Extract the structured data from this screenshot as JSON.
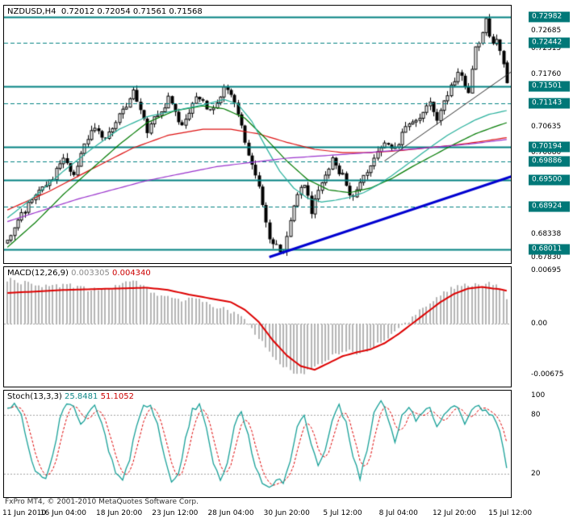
{
  "footer": {
    "copyright": "FxPro MT4, © 2001-2010 MetaQuotes Software Corp."
  },
  "colors": {
    "level_teal": "#008080",
    "badge_bg": "#007878",
    "bull": "#ffffff",
    "bear": "#000000",
    "wick": "#000000",
    "grid_gray": "#a0a0a0",
    "macd_hist": "#b4b4b4",
    "macd_signal": "#dd0000",
    "stoch_main": "#18a098",
    "stoch_signal": "#dd0000"
  },
  "time_axis": {
    "ticks": [
      {
        "bar": 0,
        "label": "11 Jun 2010",
        "align": "left"
      },
      {
        "bar": 16,
        "label": "16 Jun 04:00"
      },
      {
        "bar": 32,
        "label": "18 Jun 20:00"
      },
      {
        "bar": 48,
        "label": "23 Jun 12:00"
      },
      {
        "bar": 64,
        "label": "28 Jun 04:00"
      },
      {
        "bar": 80,
        "label": "30 Jun 20:00"
      },
      {
        "bar": 96,
        "label": "5 Jul 12:00"
      },
      {
        "bar": 112,
        "label": "8 Jul 04:00"
      },
      {
        "bar": 128,
        "label": "12 Jul 20:00"
      },
      {
        "bar": 144,
        "label": "15 Jul 12:00"
      }
    ]
  },
  "chart_data": [
    {
      "type": "candlestick",
      "title": "NZDUSD,H4",
      "ohlc_text": "0.72012 0.72054 0.71561 0.71568",
      "open": 0.72012,
      "high": 0.72054,
      "low": 0.71561,
      "close": 0.71568,
      "bars": 144,
      "price_max": 0.7323,
      "price_min": 0.6771,
      "recent_high": 0.72982,
      "last_candle": {
        "o": 0.72012,
        "h": 0.72054,
        "l": 0.71561,
        "c": 0.71568
      },
      "price_path_anchors": [
        [
          0,
          0.682
        ],
        [
          3,
          0.6858
        ],
        [
          6,
          0.69
        ],
        [
          10,
          0.6932
        ],
        [
          13,
          0.6955
        ],
        [
          16,
          0.699
        ],
        [
          19,
          0.6962
        ],
        [
          24,
          0.7058
        ],
        [
          28,
          0.7035
        ],
        [
          32,
          0.709
        ],
        [
          36,
          0.7135
        ],
        [
          38,
          0.7105
        ],
        [
          40,
          0.7052
        ],
        [
          43,
          0.709
        ],
        [
          46,
          0.7122
        ],
        [
          50,
          0.7062
        ],
        [
          54,
          0.7135
        ],
        [
          58,
          0.7098
        ],
        [
          62,
          0.7145
        ],
        [
          64,
          0.713
        ],
        [
          66,
          0.7095
        ],
        [
          69,
          0.7
        ],
        [
          72,
          0.6935
        ],
        [
          75,
          0.683
        ],
        [
          77,
          0.6805
        ],
        [
          79,
          0.6795
        ],
        [
          82,
          0.69
        ],
        [
          85,
          0.6945
        ],
        [
          87,
          0.688
        ],
        [
          90,
          0.6945
        ],
        [
          93,
          0.699
        ],
        [
          96,
          0.6958
        ],
        [
          99,
          0.6905
        ],
        [
          102,
          0.6955
        ],
        [
          105,
          0.7
        ],
        [
          108,
          0.7035
        ],
        [
          111,
          0.7018
        ],
        [
          114,
          0.7058
        ],
        [
          118,
          0.7088
        ],
        [
          121,
          0.7115
        ],
        [
          123,
          0.7082
        ],
        [
          127,
          0.715
        ],
        [
          129,
          0.7178
        ],
        [
          132,
          0.7142
        ],
        [
          134,
          0.7228
        ],
        [
          137,
          0.729
        ],
        [
          139,
          0.7238
        ],
        [
          140,
          0.7258
        ],
        [
          141,
          0.723
        ],
        [
          142,
          0.72
        ],
        [
          143,
          0.71568
        ]
      ],
      "scale_labels_plain": [
        {
          "t": "0.72685",
          "v": 0.72685
        },
        {
          "t": "0.72315",
          "v": 0.72315
        },
        {
          "t": "0.71760",
          "v": 0.7176
        },
        {
          "t": "0.70635",
          "v": 0.70635
        },
        {
          "t": "0.70080",
          "v": 0.7008
        },
        {
          "t": "0.68338",
          "v": 0.68338
        },
        {
          "t": "0.67830",
          "v": 0.6783
        }
      ],
      "badges": [
        {
          "t": "0.72982",
          "v": 0.72982
        },
        {
          "t": "0.72442",
          "v": 0.72442
        },
        {
          "t": "0.71501",
          "v": 0.71501
        },
        {
          "t": "0.71143",
          "v": 0.71143
        },
        {
          "t": "0.70194",
          "v": 0.70194
        },
        {
          "t": "0.69886",
          "v": 0.69886
        },
        {
          "t": "0.69500",
          "v": 0.695
        },
        {
          "t": "0.68924",
          "v": 0.68924
        },
        {
          "t": "0.68011",
          "v": 0.68011
        }
      ],
      "level_lines_solid": [
        0.72982,
        0.71501,
        0.70194,
        0.695,
        0.68011
      ],
      "level_lines_dashed": [
        0.72442,
        0.71143,
        0.69886,
        0.68924
      ],
      "trendlines": [
        {
          "from": [
            75,
            0.6784
          ],
          "to": [
            146,
            0.6961
          ],
          "color": "#0000d0",
          "width": 3
        },
        {
          "from": [
            108,
            0.699
          ],
          "to": [
            146,
            0.719
          ],
          "color": "#303030",
          "width": 1
        }
      ],
      "moving_averages": [
        {
          "name": "ma-red",
          "color": "#dd1111",
          "anchors": [
            [
              0,
              0.6885
            ],
            [
              12,
              0.6925
            ],
            [
              24,
              0.6972
            ],
            [
              36,
              0.7018
            ],
            [
              46,
              0.7045
            ],
            [
              56,
              0.7058
            ],
            [
              64,
              0.7058
            ],
            [
              72,
              0.7048
            ],
            [
              80,
              0.703
            ],
            [
              88,
              0.7015
            ],
            [
              96,
              0.7008
            ],
            [
              104,
              0.7008
            ],
            [
              112,
              0.7012
            ],
            [
              120,
              0.7018
            ],
            [
              128,
              0.7024
            ],
            [
              136,
              0.7032
            ],
            [
              143,
              0.704
            ]
          ]
        },
        {
          "name": "ma-green",
          "color": "#007a00",
          "anchors": [
            [
              0,
              0.6805
            ],
            [
              8,
              0.6858
            ],
            [
              16,
              0.6918
            ],
            [
              24,
              0.6972
            ],
            [
              32,
              0.7025
            ],
            [
              40,
              0.7072
            ],
            [
              48,
              0.7098
            ],
            [
              56,
              0.7108
            ],
            [
              62,
              0.7102
            ],
            [
              68,
              0.7082
            ],
            [
              74,
              0.7038
            ],
            [
              80,
              0.699
            ],
            [
              86,
              0.695
            ],
            [
              92,
              0.6928
            ],
            [
              98,
              0.6922
            ],
            [
              104,
              0.6932
            ],
            [
              110,
              0.6952
            ],
            [
              116,
              0.6978
            ],
            [
              122,
              0.7002
            ],
            [
              128,
              0.7026
            ],
            [
              134,
              0.7048
            ],
            [
              139,
              0.7062
            ],
            [
              143,
              0.7072
            ]
          ]
        },
        {
          "name": "ma-teal",
          "color": "#28b09c",
          "anchors": [
            [
              0,
              0.6868
            ],
            [
              8,
              0.6915
            ],
            [
              16,
              0.6968
            ],
            [
              24,
              0.7015
            ],
            [
              32,
              0.7058
            ],
            [
              40,
              0.7085
            ],
            [
              48,
              0.7098
            ],
            [
              56,
              0.711
            ],
            [
              62,
              0.7122
            ],
            [
              66,
              0.7112
            ],
            [
              70,
              0.7075
            ],
            [
              74,
              0.702
            ],
            [
              78,
              0.6968
            ],
            [
              82,
              0.6932
            ],
            [
              86,
              0.691
            ],
            [
              90,
              0.6902
            ],
            [
              94,
              0.6906
            ],
            [
              98,
              0.6912
            ],
            [
              102,
              0.6922
            ],
            [
              106,
              0.6938
            ],
            [
              110,
              0.6958
            ],
            [
              114,
              0.698
            ],
            [
              118,
              0.7002
            ],
            [
              122,
              0.7024
            ],
            [
              126,
              0.7045
            ],
            [
              130,
              0.7062
            ],
            [
              134,
              0.7078
            ],
            [
              138,
              0.709
            ],
            [
              143,
              0.7098
            ]
          ]
        },
        {
          "name": "ma-purple",
          "color": "#9932cc",
          "anchors": [
            [
              0,
              0.686
            ],
            [
              20,
              0.6908
            ],
            [
              40,
              0.6948
            ],
            [
              60,
              0.6978
            ],
            [
              80,
              0.6996
            ],
            [
              100,
              0.7006
            ],
            [
              120,
              0.7018
            ],
            [
              132,
              0.7026
            ],
            [
              143,
              0.7036
            ]
          ]
        }
      ]
    },
    {
      "type": "macd",
      "label": "MACD(12,26,9)",
      "value_macd": "0.003305",
      "value_signal": "0.004340",
      "max": 0.0074,
      "min": -0.0083,
      "scale_labels": [
        {
          "t": "0.00695",
          "v": 0.00695
        },
        {
          "t": "0.00",
          "v": 0
        },
        {
          "t": "-0.00675",
          "v": -0.00675
        }
      ],
      "histogram_anchors": [
        [
          0,
          0.0058
        ],
        [
          6,
          0.0052
        ],
        [
          12,
          0.0048
        ],
        [
          18,
          0.005
        ],
        [
          24,
          0.0044
        ],
        [
          30,
          0.0046
        ],
        [
          36,
          0.0056
        ],
        [
          42,
          0.004
        ],
        [
          48,
          0.003
        ],
        [
          54,
          0.0032
        ],
        [
          60,
          0.0022
        ],
        [
          64,
          0.0016
        ],
        [
          68,
          0.0004
        ],
        [
          72,
          -0.0018
        ],
        [
          76,
          -0.0045
        ],
        [
          80,
          -0.006
        ],
        [
          84,
          -0.0067
        ],
        [
          88,
          -0.0058
        ],
        [
          91,
          -0.0048
        ],
        [
          94,
          -0.004
        ],
        [
          98,
          -0.0036
        ],
        [
          101,
          -0.004
        ],
        [
          104,
          -0.0032
        ],
        [
          108,
          -0.002
        ],
        [
          112,
          -0.0008
        ],
        [
          116,
          0.0008
        ],
        [
          120,
          0.0024
        ],
        [
          124,
          0.0038
        ],
        [
          128,
          0.0048
        ],
        [
          132,
          0.0052
        ],
        [
          135,
          0.0049
        ],
        [
          138,
          0.0053
        ],
        [
          141,
          0.0047
        ],
        [
          143,
          0.0033
        ]
      ],
      "signal_anchors": [
        [
          0,
          0.004
        ],
        [
          8,
          0.0042
        ],
        [
          16,
          0.0044
        ],
        [
          24,
          0.0045
        ],
        [
          32,
          0.0046
        ],
        [
          40,
          0.0047
        ],
        [
          46,
          0.0044
        ],
        [
          52,
          0.0038
        ],
        [
          58,
          0.0033
        ],
        [
          64,
          0.0028
        ],
        [
          68,
          0.0018
        ],
        [
          72,
          0.0002
        ],
        [
          76,
          -0.0022
        ],
        [
          80,
          -0.0042
        ],
        [
          84,
          -0.0056
        ],
        [
          88,
          -0.0061
        ],
        [
          92,
          -0.0052
        ],
        [
          96,
          -0.0043
        ],
        [
          100,
          -0.0038
        ],
        [
          104,
          -0.0034
        ],
        [
          108,
          -0.0026
        ],
        [
          112,
          -0.0014
        ],
        [
          116,
          0.0
        ],
        [
          120,
          0.0014
        ],
        [
          124,
          0.0028
        ],
        [
          128,
          0.0039
        ],
        [
          132,
          0.0046
        ],
        [
          136,
          0.0048
        ],
        [
          139,
          0.0046
        ],
        [
          141,
          0.0045
        ],
        [
          143,
          0.0043
        ]
      ]
    },
    {
      "type": "stochastic",
      "label": "Stoch(13,3,3)",
      "value_k": "25.8481",
      "value_d": "51.1052",
      "axis_max": 105,
      "axis_min": -4,
      "last_k": 25.85,
      "levels_dashed": [
        80,
        20
      ],
      "scale_labels": [
        {
          "t": "100",
          "v": 100
        },
        {
          "t": "80",
          "v": 80
        },
        {
          "t": "20",
          "v": 20
        }
      ],
      "k_anchors": [
        [
          0,
          85
        ],
        [
          2,
          92
        ],
        [
          4,
          80
        ],
        [
          6,
          45
        ],
        [
          8,
          22
        ],
        [
          11,
          14
        ],
        [
          13,
          40
        ],
        [
          15,
          75
        ],
        [
          17,
          93
        ],
        [
          19,
          90
        ],
        [
          21,
          72
        ],
        [
          23,
          80
        ],
        [
          25,
          88
        ],
        [
          27,
          70
        ],
        [
          29,
          45
        ],
        [
          31,
          22
        ],
        [
          33,
          14
        ],
        [
          35,
          35
        ],
        [
          37,
          70
        ],
        [
          39,
          88
        ],
        [
          41,
          90
        ],
        [
          43,
          70
        ],
        [
          45,
          35
        ],
        [
          47,
          10
        ],
        [
          49,
          18
        ],
        [
          51,
          55
        ],
        [
          53,
          85
        ],
        [
          55,
          90
        ],
        [
          57,
          68
        ],
        [
          59,
          32
        ],
        [
          61,
          12
        ],
        [
          63,
          30
        ],
        [
          65,
          70
        ],
        [
          67,
          85
        ],
        [
          69,
          58
        ],
        [
          71,
          28
        ],
        [
          73,
          12
        ],
        [
          75,
          5
        ],
        [
          77,
          16
        ],
        [
          79,
          10
        ],
        [
          81,
          34
        ],
        [
          83,
          68
        ],
        [
          85,
          80
        ],
        [
          87,
          52
        ],
        [
          89,
          26
        ],
        [
          91,
          46
        ],
        [
          93,
          74
        ],
        [
          95,
          90
        ],
        [
          97,
          72
        ],
        [
          99,
          38
        ],
        [
          101,
          15
        ],
        [
          103,
          45
        ],
        [
          105,
          82
        ],
        [
          107,
          95
        ],
        [
          109,
          78
        ],
        [
          111,
          52
        ],
        [
          113,
          78
        ],
        [
          115,
          90
        ],
        [
          117,
          72
        ],
        [
          119,
          84
        ],
        [
          121,
          90
        ],
        [
          123,
          66
        ],
        [
          125,
          78
        ],
        [
          127,
          90
        ],
        [
          129,
          86
        ],
        [
          131,
          70
        ],
        [
          133,
          84
        ],
        [
          135,
          90
        ],
        [
          137,
          84
        ],
        [
          139,
          80
        ],
        [
          141,
          62
        ],
        [
          143,
          26
        ]
      ]
    }
  ]
}
